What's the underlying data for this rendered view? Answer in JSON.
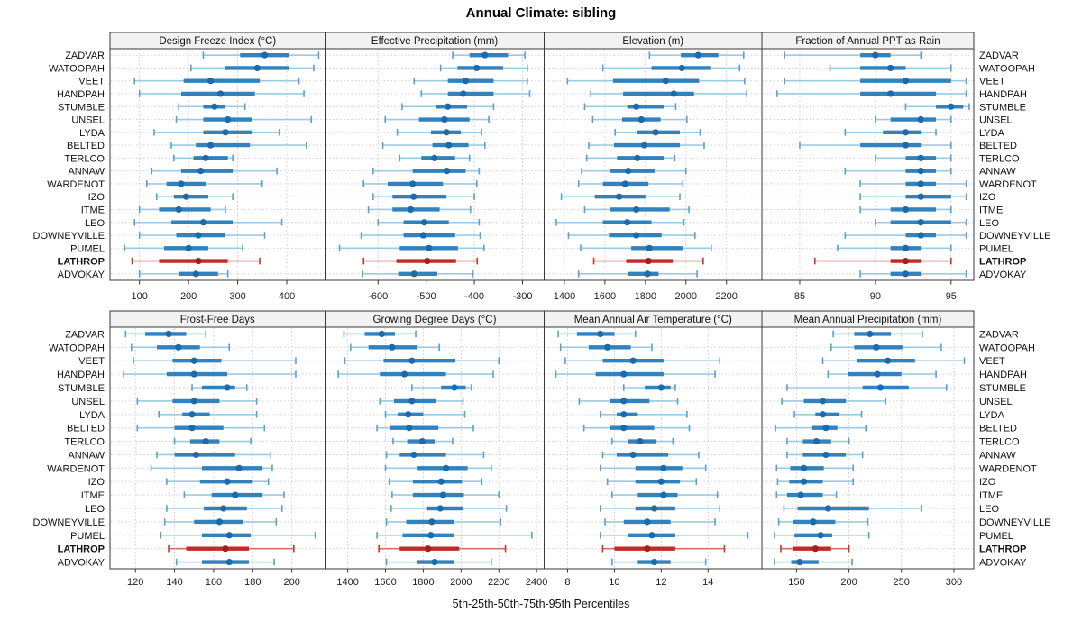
{
  "title": "Annual Climate: sibling",
  "caption": "5th-25th-50th-75th-95th Percentiles",
  "percentiles": [
    5,
    25,
    50,
    75,
    95
  ],
  "sites": [
    "ZADVAR",
    "WATOOPAH",
    "VEET",
    "HANDPAH",
    "STUMBLE",
    "UNSEL",
    "LYDA",
    "BELTED",
    "TERLCO",
    "ANNAW",
    "WARDENOT",
    "IZO",
    "ITME",
    "LEO",
    "DOWNEYVILLE",
    "PUMEL",
    "LATHROP",
    "ADVOKAY"
  ],
  "highlighted_site": "LATHROP",
  "colors": {
    "whisker": "#9ecae1",
    "cap": "#5ba0cf",
    "box": "#3182bd",
    "dot": "#1a6bad",
    "hl_whisker": "#d2706a",
    "hl_cap": "#c0392b",
    "hl_box": "#bf2c25",
    "hl_dot": "#a51d1d",
    "strip_bg": "#f2f2f2",
    "grid": "#c9c9c9",
    "border": "#3a3a3a",
    "tick_text": "#222222"
  },
  "chart_data": [
    {
      "type": "percentile-interval",
      "title": "Design Freeze Index (°C)",
      "xlim": [
        40,
        478
      ],
      "ticks": [
        100,
        200,
        300,
        400
      ],
      "values": [
        [
          230,
          305,
          355,
          405,
          465
        ],
        [
          205,
          275,
          340,
          405,
          455
        ],
        [
          90,
          190,
          245,
          345,
          425
        ],
        [
          100,
          185,
          265,
          335,
          435
        ],
        [
          180,
          230,
          253,
          275,
          315
        ],
        [
          175,
          230,
          280,
          330,
          450
        ],
        [
          130,
          230,
          275,
          330,
          385
        ],
        [
          165,
          215,
          245,
          325,
          440
        ],
        [
          170,
          210,
          235,
          280,
          290
        ],
        [
          125,
          185,
          225,
          290,
          380
        ],
        [
          115,
          155,
          185,
          235,
          350
        ],
        [
          135,
          170,
          195,
          240,
          290
        ],
        [
          100,
          140,
          180,
          245,
          275
        ],
        [
          90,
          165,
          230,
          290,
          390
        ],
        [
          100,
          175,
          220,
          275,
          355
        ],
        [
          70,
          150,
          200,
          240,
          310
        ],
        [
          85,
          140,
          220,
          280,
          345
        ],
        [
          100,
          180,
          215,
          260,
          280
        ]
      ]
    },
    {
      "type": "percentile-interval",
      "title": "Effective Precipitation (mm)",
      "xlim": [
        -710,
        -255
      ],
      "ticks": [
        -600,
        -500,
        -400,
        -300
      ],
      "values": [
        [
          -445,
          -410,
          -378,
          -330,
          -295
        ],
        [
          -470,
          -435,
          -395,
          -340,
          -290
        ],
        [
          -525,
          -455,
          -418,
          -360,
          -290
        ],
        [
          -510,
          -455,
          -423,
          -360,
          -285
        ],
        [
          -550,
          -480,
          -455,
          -415,
          -360
        ],
        [
          -585,
          -515,
          -462,
          -410,
          -370
        ],
        [
          -560,
          -490,
          -458,
          -428,
          -385
        ],
        [
          -590,
          -487,
          -453,
          -412,
          -378
        ],
        [
          -555,
          -510,
          -483,
          -440,
          -410
        ],
        [
          -610,
          -528,
          -457,
          -418,
          -390
        ],
        [
          -630,
          -580,
          -528,
          -465,
          -395
        ],
        [
          -610,
          -570,
          -526,
          -458,
          -400
        ],
        [
          -620,
          -570,
          -532,
          -472,
          -408
        ],
        [
          -600,
          -547,
          -504,
          -453,
          -390
        ],
        [
          -635,
          -547,
          -506,
          -440,
          -388
        ],
        [
          -680,
          -555,
          -494,
          -434,
          -380
        ],
        [
          -630,
          -562,
          -498,
          -438,
          -394
        ],
        [
          -632,
          -558,
          -525,
          -477,
          -403
        ]
      ]
    },
    {
      "type": "percentile-interval",
      "title": "Elevation (m)",
      "xlim": [
        1300,
        2375
      ],
      "ticks": [
        1400,
        1600,
        1800,
        2000,
        2200
      ],
      "values": [
        [
          1820,
          1975,
          2060,
          2160,
          2285
        ],
        [
          1590,
          1830,
          1980,
          2120,
          2265
        ],
        [
          1415,
          1640,
          1900,
          2065,
          2290
        ],
        [
          1530,
          1690,
          1940,
          2040,
          2300
        ],
        [
          1500,
          1710,
          1755,
          1890,
          1950
        ],
        [
          1540,
          1685,
          1780,
          1875,
          2005
        ],
        [
          1650,
          1760,
          1850,
          1970,
          2070
        ],
        [
          1520,
          1645,
          1795,
          1970,
          2090
        ],
        [
          1510,
          1660,
          1760,
          1890,
          1945
        ],
        [
          1485,
          1625,
          1715,
          1845,
          2000
        ],
        [
          1470,
          1590,
          1700,
          1815,
          1985
        ],
        [
          1385,
          1550,
          1670,
          1800,
          1970
        ],
        [
          1500,
          1625,
          1755,
          1920,
          2015
        ],
        [
          1360,
          1590,
          1710,
          1830,
          1990
        ],
        [
          1420,
          1620,
          1755,
          1880,
          2045
        ],
        [
          1480,
          1730,
          1820,
          1985,
          2125
        ],
        [
          1545,
          1705,
          1815,
          1935,
          2085
        ],
        [
          1470,
          1715,
          1810,
          1865,
          2055
        ]
      ]
    },
    {
      "type": "percentile-interval",
      "title": "Fraction of Annual PPT as Rain",
      "xlim": [
        82.5,
        96.5
      ],
      "ticks": [
        85,
        90,
        95
      ],
      "values": [
        [
          84,
          89,
          90,
          91,
          93
        ],
        [
          87,
          89,
          91,
          92,
          95
        ],
        [
          84,
          89,
          92,
          95,
          96
        ],
        [
          83.5,
          89,
          91,
          94,
          96
        ],
        [
          92,
          94,
          95,
          95.8,
          96.2
        ],
        [
          90,
          91,
          93,
          94,
          95
        ],
        [
          88,
          90.5,
          92,
          93,
          94
        ],
        [
          85,
          89,
          92,
          93,
          95
        ],
        [
          90,
          92,
          93,
          94,
          95
        ],
        [
          88,
          92,
          93,
          94,
          95
        ],
        [
          89,
          92,
          93,
          94,
          96
        ],
        [
          89,
          92,
          93,
          95,
          96
        ],
        [
          89,
          91,
          92,
          94,
          95
        ],
        [
          90,
          91,
          93,
          95,
          96
        ],
        [
          88,
          92,
          93,
          94,
          96
        ],
        [
          87.5,
          91,
          92,
          93,
          95
        ],
        [
          86,
          91,
          92,
          93,
          95
        ],
        [
          89,
          91,
          92,
          93,
          96
        ]
      ]
    },
    {
      "type": "percentile-interval",
      "title": "Frost-Free Days",
      "xlim": [
        107,
        217
      ],
      "ticks": [
        120,
        140,
        160,
        180,
        200
      ],
      "values": [
        [
          115,
          125,
          137,
          146,
          156
        ],
        [
          118,
          131,
          142,
          153,
          168
        ],
        [
          119,
          139,
          150,
          164,
          202
        ],
        [
          114,
          136,
          150,
          167,
          202
        ],
        [
          149,
          154,
          167,
          171,
          177
        ],
        [
          121,
          139,
          150,
          163,
          182
        ],
        [
          132,
          144,
          149,
          158,
          182
        ],
        [
          121,
          140,
          149,
          165,
          186
        ],
        [
          140,
          148,
          156,
          163,
          179
        ],
        [
          131,
          140,
          151,
          171,
          189
        ],
        [
          128,
          154,
          173,
          185,
          190
        ],
        [
          136,
          153,
          167,
          180,
          188
        ],
        [
          145,
          159,
          171,
          185,
          196
        ],
        [
          136,
          155,
          165,
          177,
          195
        ],
        [
          135,
          150,
          163,
          175,
          192
        ],
        [
          133,
          154,
          168,
          179,
          212
        ],
        [
          137,
          146,
          166,
          178,
          201
        ],
        [
          141,
          154,
          168,
          178,
          191
        ]
      ]
    },
    {
      "type": "percentile-interval",
      "title": "Growing Degree Days (°C)",
      "xlim": [
        1280,
        2440
      ],
      "ticks": [
        1400,
        1600,
        1800,
        2000,
        2200,
        2400
      ],
      "values": [
        [
          1380,
          1490,
          1580,
          1650,
          1760
        ],
        [
          1415,
          1510,
          1635,
          1770,
          1885
        ],
        [
          1385,
          1590,
          1740,
          1970,
          2200
        ],
        [
          1350,
          1570,
          1700,
          1920,
          2170
        ],
        [
          1740,
          1895,
          1965,
          2025,
          2055
        ],
        [
          1570,
          1645,
          1740,
          1865,
          2010
        ],
        [
          1600,
          1665,
          1720,
          1800,
          2020
        ],
        [
          1555,
          1625,
          1725,
          1880,
          2065
        ],
        [
          1640,
          1715,
          1795,
          1860,
          1955
        ],
        [
          1605,
          1675,
          1750,
          1920,
          2120
        ],
        [
          1600,
          1770,
          1920,
          2035,
          2160
        ],
        [
          1620,
          1745,
          1895,
          2005,
          2110
        ],
        [
          1635,
          1745,
          1905,
          2015,
          2200
        ],
        [
          1630,
          1820,
          1890,
          2010,
          2240
        ],
        [
          1605,
          1710,
          1845,
          1965,
          2210
        ],
        [
          1555,
          1690,
          1840,
          1960,
          2375
        ],
        [
          1565,
          1675,
          1825,
          1990,
          2235
        ],
        [
          1605,
          1765,
          1860,
          1965,
          2160
        ]
      ]
    },
    {
      "type": "percentile-interval",
      "title": "Mean Annual Air Temperature (°C)",
      "xlim": [
        7.0,
        16.3
      ],
      "ticks": [
        8,
        10,
        12,
        14
      ],
      "values": [
        [
          7.6,
          8.4,
          9.4,
          10,
          10.9
        ],
        [
          7.7,
          8.9,
          9.7,
          10.7,
          11.6
        ],
        [
          7.9,
          9.5,
          10.8,
          12.1,
          14.5
        ],
        [
          7.5,
          9.2,
          10.4,
          12.1,
          14.3
        ],
        [
          10.4,
          11.3,
          12,
          12.4,
          12.6
        ],
        [
          8.5,
          9.8,
          10.4,
          11.5,
          12.7
        ],
        [
          9.4,
          10.1,
          10.4,
          11,
          13.1
        ],
        [
          8.7,
          9.8,
          10.4,
          11.7,
          13.2
        ],
        [
          9.9,
          10.6,
          11.1,
          11.8,
          12.5
        ],
        [
          9.5,
          10.1,
          10.8,
          12.3,
          13.6
        ],
        [
          9.4,
          10.9,
          12.1,
          12.9,
          13.9
        ],
        [
          9.7,
          10.9,
          12,
          12.8,
          13.5
        ],
        [
          9.9,
          11,
          12.1,
          12.7,
          14.4
        ],
        [
          9.4,
          10.9,
          11.7,
          12.6,
          14.5
        ],
        [
          9.6,
          10.4,
          11.4,
          12.4,
          14.3
        ],
        [
          9.4,
          10.6,
          11.6,
          12.6,
          15.7
        ],
        [
          9.5,
          10,
          11.4,
          12.6,
          14.7
        ],
        [
          9.9,
          11,
          11.7,
          12.4,
          13.9
        ]
      ]
    },
    {
      "type": "percentile-interval",
      "title": "Mean Annual Precipitation (mm)",
      "xlim": [
        117,
        319
      ],
      "ticks": [
        150,
        200,
        250,
        300
      ],
      "values": [
        [
          185,
          205,
          220,
          240,
          270
        ],
        [
          183,
          205,
          226,
          251,
          288
        ],
        [
          175,
          208,
          237,
          263,
          310
        ],
        [
          180,
          199,
          227,
          250,
          283
        ],
        [
          141,
          213,
          230,
          257,
          293
        ],
        [
          136,
          157,
          175,
          197,
          235
        ],
        [
          148,
          168,
          175,
          191,
          212
        ],
        [
          130,
          165,
          178,
          189,
          216
        ],
        [
          141,
          156,
          169,
          183,
          200
        ],
        [
          141,
          156,
          178,
          197,
          213
        ],
        [
          131,
          144,
          157,
          176,
          204
        ],
        [
          132,
          143,
          157,
          175,
          204
        ],
        [
          131,
          141,
          154,
          175,
          188
        ],
        [
          138,
          151,
          180,
          219,
          269
        ],
        [
          133,
          147,
          166,
          187,
          218
        ],
        [
          129,
          148,
          173,
          184,
          219
        ],
        [
          135,
          147,
          168,
          183,
          200
        ],
        [
          129,
          145,
          153,
          171,
          203
        ]
      ]
    }
  ]
}
